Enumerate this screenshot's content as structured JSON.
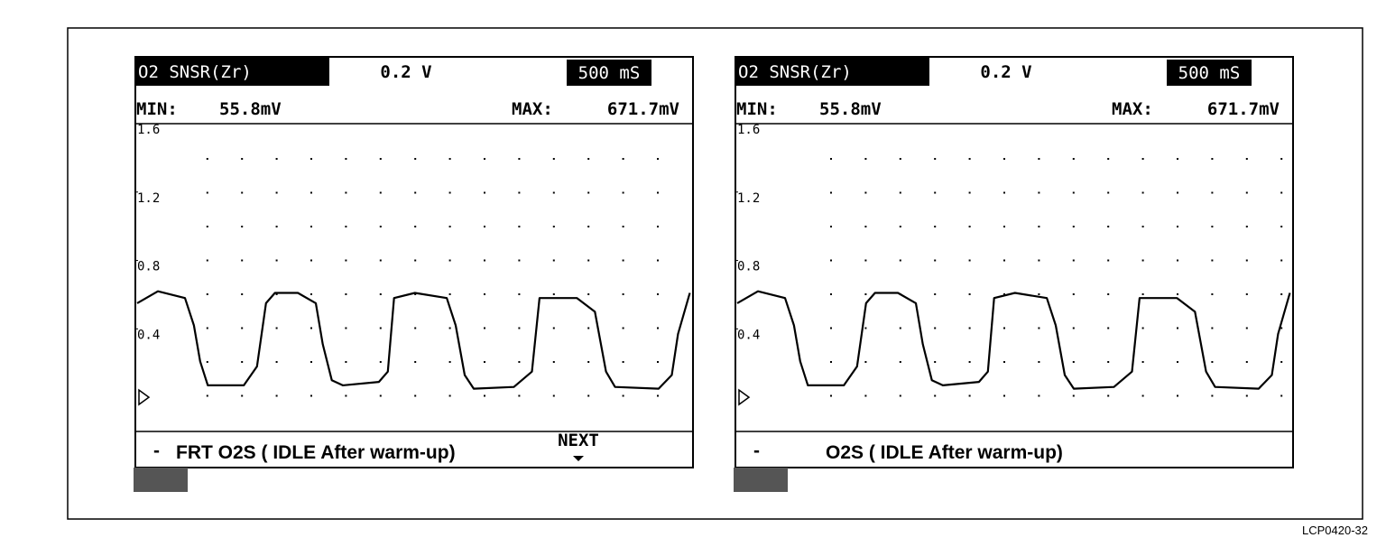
{
  "chart_data": [
    {
      "type": "line",
      "channel": "O2 SNSR(Zr)",
      "scale": "0.2 V",
      "timebase": "500 mS",
      "min_label": "MIN:",
      "min": "55.8mV",
      "max_label": "MAX:",
      "max": "671.7mV",
      "caption_mark": "-",
      "caption": "FRT O2S ( IDLE After warm-up)",
      "next": "NEXT",
      "x": [
        0,
        0.3,
        0.69,
        0.82,
        0.91,
        1.02,
        1.54,
        1.73,
        1.86,
        1.99,
        2.32,
        2.58,
        2.68,
        2.81,
        2.97,
        3.49,
        3.62,
        3.71,
        4.01,
        4.47,
        4.6,
        4.73,
        4.86,
        5.44,
        5.7,
        5.81,
        6.35,
        6.61,
        6.77,
        6.9,
        7.53,
        7.72,
        7.81,
        7.98
      ],
      "values": [
        0.55,
        0.62,
        0.58,
        0.42,
        0.21,
        0.07,
        0.07,
        0.18,
        0.55,
        0.61,
        0.61,
        0.55,
        0.31,
        0.1,
        0.07,
        0.09,
        0.15,
        0.58,
        0.61,
        0.58,
        0.42,
        0.13,
        0.05,
        0.06,
        0.15,
        0.58,
        0.58,
        0.5,
        0.15,
        0.06,
        0.05,
        0.13,
        0.37,
        0.61
      ],
      "color": "#000000",
      "xlim": [
        0,
        8
      ],
      "ylim": [
        -0.2,
        1.6
      ],
      "yticks": [
        0.4,
        0.8,
        1.2,
        1.6
      ]
    },
    {
      "type": "line",
      "channel": "O2 SNSR(Zr)",
      "scale": "0.2 V",
      "timebase": "500 mS",
      "min_label": "MIN:",
      "min": "55.8mV",
      "max_label": "MAX:",
      "max": "671.7mV",
      "caption_mark": "-",
      "caption": "O2S ( IDLE After warm-up)",
      "x": [
        0,
        0.3,
        0.69,
        0.82,
        0.91,
        1.02,
        1.54,
        1.73,
        1.86,
        1.99,
        2.32,
        2.58,
        2.68,
        2.81,
        2.97,
        3.49,
        3.62,
        3.71,
        4.01,
        4.47,
        4.6,
        4.73,
        4.86,
        5.44,
        5.7,
        5.81,
        6.35,
        6.61,
        6.77,
        6.9,
        7.53,
        7.72,
        7.81,
        7.98
      ],
      "values": [
        0.55,
        0.62,
        0.58,
        0.42,
        0.21,
        0.07,
        0.07,
        0.18,
        0.55,
        0.61,
        0.61,
        0.55,
        0.31,
        0.1,
        0.07,
        0.09,
        0.15,
        0.58,
        0.61,
        0.58,
        0.42,
        0.13,
        0.05,
        0.06,
        0.15,
        0.58,
        0.58,
        0.5,
        0.15,
        0.06,
        0.05,
        0.13,
        0.37,
        0.61
      ],
      "color": "#000000",
      "xlim": [
        0,
        8
      ],
      "ylim": [
        -0.2,
        1.6
      ],
      "yticks": [
        0.4,
        0.8,
        1.2,
        1.6
      ]
    }
  ],
  "figure_code": "LCP0420-32"
}
